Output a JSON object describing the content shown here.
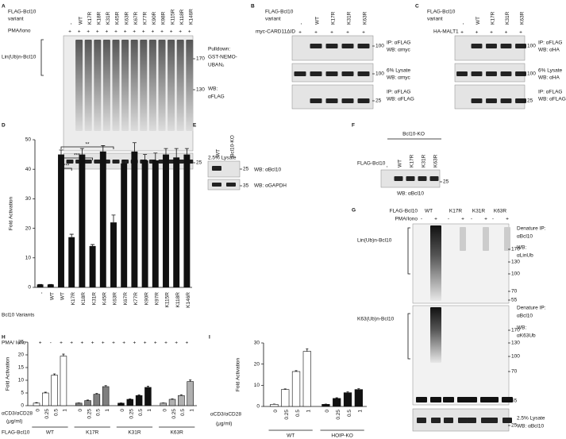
{
  "panels": {
    "A": {
      "letter": "A",
      "header": [
        "FLAG-Bcl10",
        "variant"
      ],
      "treatment": "PMA/Iono",
      "lanes": [
        "-",
        "WT",
        "K17R",
        "K18R",
        "K31R",
        "K45R",
        "K63R",
        "K67R",
        "K77R",
        "K90R",
        "K98R",
        "K115R",
        "K118R",
        "K146R"
      ],
      "treatment_signs": [
        "+",
        "+",
        "+",
        "+",
        "+",
        "+",
        "+",
        "+",
        "+",
        "+",
        "+",
        "+",
        "+",
        "+"
      ],
      "band_label": "Lin(Ub)n-Bcl10",
      "blot_labels": [
        [
          "Pulldown:",
          "GST-NEMO-",
          "UBAN₂"
        ],
        [
          "WB:",
          "αFLAG"
        ],
        [
          "2.5% Lysate",
          "WB: αFLAG"
        ]
      ],
      "markers": [
        "170",
        "130",
        "25"
      ]
    },
    "B": {
      "letter": "B",
      "header": [
        "FLAG-Bcl10",
        "variant"
      ],
      "treatment": "myc-CARD11ΔID",
      "lanes": [
        "-",
        "WT",
        "K17R",
        "K31R",
        "K63R"
      ],
      "treatment_signs": [
        "+",
        "+",
        "+",
        "+",
        "+"
      ],
      "blot_labels": [
        [
          "IP: αFLAG",
          "WB: αmyc"
        ],
        [
          "6% Lysate",
          "WB: αmyc"
        ],
        [
          "IP: αFLAG",
          "WB: αFLAG"
        ]
      ],
      "markers": [
        "100",
        "100",
        "25"
      ]
    },
    "C": {
      "letter": "C",
      "header": [
        "FLAG-Bcl10",
        "variant"
      ],
      "treatment": "HA-MALT1",
      "lanes": [
        "-",
        "WT",
        "K17R",
        "K31R",
        "K63R"
      ],
      "treatment_signs": [
        "+",
        "+",
        "+",
        "+",
        "+"
      ],
      "blot_labels": [
        [
          "IP: αFLAG",
          "WB: αHA"
        ],
        [
          "6% Lysate",
          "WB: αHA"
        ],
        [
          "IP: αFLAG",
          "WB: αFLAG"
        ]
      ],
      "markers": [
        "100",
        "100",
        "25"
      ]
    },
    "E": {
      "letter": "E",
      "lanes": [
        "WT",
        "Bcl10-KO"
      ],
      "blot_labels": [
        "WB: αBcl10",
        "WB: αGAPDH"
      ],
      "markers": [
        "25",
        "35"
      ]
    },
    "F": {
      "letter": "F",
      "group": "Bcl10-KO",
      "row_label": "FLAG-Bcl10",
      "lanes": [
        "-",
        "WT",
        "K17R",
        "K31R",
        "K63R"
      ],
      "blot_label": "WB: αBcl10",
      "markers": [
        "25"
      ]
    },
    "G": {
      "letter": "G",
      "header": "FLAG-Bcl10",
      "treatment": "PMA/Iono",
      "lanes": [
        "WT",
        "K17R",
        "K31R",
        "K63R"
      ],
      "treatment_signs": [
        "-",
        "+",
        "-",
        "+",
        "-",
        "+",
        "-",
        "+"
      ],
      "band_labels": [
        "Lin(Ub)n-Bcl10",
        "K63(Ub)n-Bcl10"
      ],
      "blot_labels": [
        [
          "Denature IP:",
          "αBcl10",
          "WB:",
          "αLinUb"
        ],
        [
          "Denature IP:",
          "αBcl10",
          "WB:",
          "αK63Ub"
        ],
        [
          "2.5% Lysate",
          "WB: αBcl10"
        ]
      ],
      "markers": [
        [
          "170",
          "130",
          "100",
          "70",
          "55"
        ],
        [
          "170",
          "130",
          "100",
          "70",
          "55"
        ],
        [
          "25"
        ]
      ]
    }
  },
  "chart_data": [
    {
      "type": "bar",
      "letter": "D",
      "y_label": "Fold Activation",
      "row_label": "Bcl10 Variants",
      "treatment": "PMA/ Iono",
      "categories": [
        "-",
        "WT",
        "WT",
        "K17R",
        "K18R",
        "K31R",
        "K45R",
        "K63R",
        "K67R",
        "K77R",
        "K90R",
        "K97R",
        "K115R",
        "K118R",
        "K146R"
      ],
      "treatment_signs": [
        "+",
        "-",
        "+",
        "+",
        "+",
        "+",
        "+",
        "+",
        "+",
        "+",
        "+",
        "+",
        "+",
        "+",
        "+"
      ],
      "values": [
        1,
        1,
        45,
        17,
        45,
        14,
        46,
        22,
        42,
        46,
        43,
        43,
        45,
        44,
        45
      ],
      "errors": [
        0,
        0,
        1.5,
        1,
        2,
        0.5,
        2,
        2.5,
        1,
        3,
        2,
        2.5,
        2,
        3,
        2
      ],
      "color": "#111111",
      "ylim": [
        0,
        50
      ],
      "yticks": [
        0,
        10,
        20,
        30,
        40,
        50
      ],
      "annotations": [
        "***",
        "***",
        "**"
      ]
    },
    {
      "type": "grouped_bar",
      "letter": "H",
      "y_label": "Fold Activation",
      "x_label": [
        "αCD3/αCD28",
        "(μg/ml)"
      ],
      "group_label": "FLAG-Bcl10",
      "categories": [
        "0",
        "0.25",
        "0.5",
        "1"
      ],
      "series": [
        {
          "name": "WT",
          "color": "#ffffff",
          "values": [
            1,
            5,
            12,
            19.5
          ],
          "errors": [
            0.2,
            0.3,
            0.5,
            0.8
          ]
        },
        {
          "name": "K17R",
          "color": "#7f7f7f",
          "values": [
            1,
            2,
            4.5,
            7.5
          ],
          "errors": [
            0.1,
            0.2,
            0.3,
            0.4
          ]
        },
        {
          "name": "K31R",
          "color": "#111111",
          "values": [
            1,
            2.5,
            4,
            7.2
          ],
          "errors": [
            0.1,
            0.2,
            0.3,
            0.5
          ]
        },
        {
          "name": "K63R",
          "color": "#b0b0b0",
          "values": [
            1,
            2.5,
            4,
            9.5
          ],
          "errors": [
            0.1,
            0.2,
            0.3,
            0.6
          ]
        }
      ],
      "ylim": [
        0,
        25
      ],
      "yticks": [
        0,
        5,
        10,
        15,
        20,
        25
      ]
    },
    {
      "type": "grouped_bar",
      "letter": "I",
      "y_label": "Fold Activation",
      "x_label": [
        "αCD3/αCD28",
        "(μg/ml)"
      ],
      "categories": [
        "0",
        "0.25",
        "0.5",
        "1"
      ],
      "series": [
        {
          "name": "WT",
          "color": "#ffffff",
          "values": [
            1,
            8,
            16.5,
            26
          ],
          "errors": [
            0.1,
            0.3,
            0.4,
            1.2
          ]
        },
        {
          "name": "HOIP-KO",
          "color": "#111111",
          "values": [
            1,
            3.8,
            6.5,
            8
          ],
          "errors": [
            0.1,
            0.3,
            0.4,
            0.4
          ]
        }
      ],
      "ylim": [
        0,
        30
      ],
      "yticks": [
        0,
        10,
        20,
        30
      ]
    }
  ]
}
